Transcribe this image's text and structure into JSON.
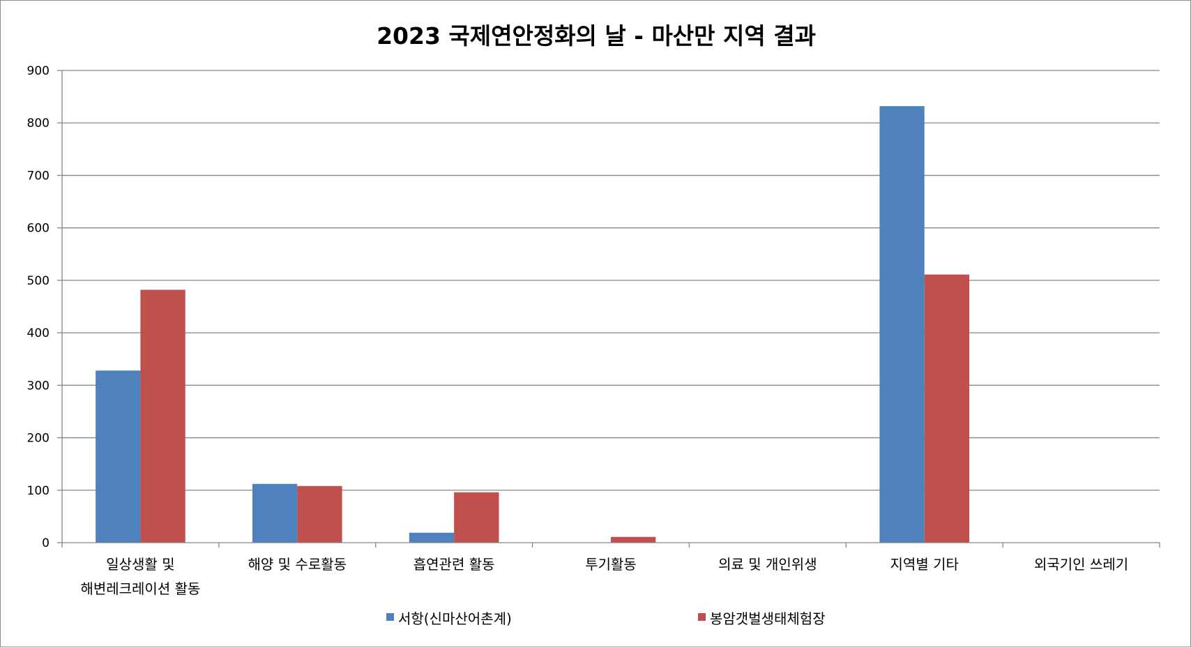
{
  "chart_data": {
    "type": "bar",
    "title": "2023 국제연안정화의 날 - 마산만 지역 결과",
    "xlabel": "",
    "ylabel": "",
    "ylim": [
      0,
      900
    ],
    "yticks": [
      0,
      100,
      200,
      300,
      400,
      500,
      600,
      700,
      800,
      900
    ],
    "grid": true,
    "legend_position": "bottom",
    "categories": [
      [
        "일상생활 및",
        "해변레크레이션 활동"
      ],
      [
        "해양 및 수로활동"
      ],
      [
        "흡연관련 활동"
      ],
      [
        "투기활동"
      ],
      [
        "의료 및 개인위생"
      ],
      [
        "지역별 기타"
      ],
      [
        "외국기인 쓰레기"
      ]
    ],
    "series": [
      {
        "name": "서항(신마산어촌계)",
        "color": "#4f81bd",
        "values": [
          328,
          112,
          19,
          0,
          0,
          832,
          0
        ]
      },
      {
        "name": "봉암갯벌생태체험장",
        "color": "#c0504d",
        "values": [
          482,
          108,
          96,
          11,
          0,
          511,
          0
        ]
      }
    ]
  }
}
